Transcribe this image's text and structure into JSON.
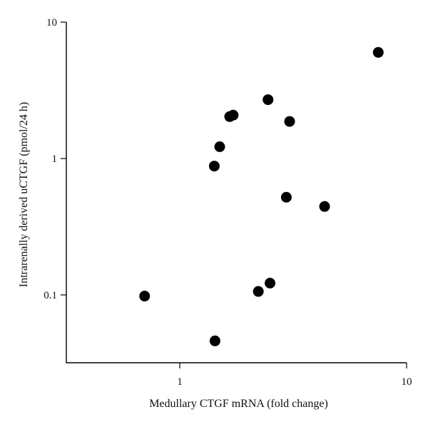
{
  "chart_data": {
    "type": "scatter",
    "title": "",
    "xlabel": "Medullary CTGF mRNA (fold change)",
    "ylabel": "Intrarenally derived uCTGF (pmol/24 h)",
    "xscale": "log",
    "yscale": "log",
    "xlim": [
      0.32,
      10
    ],
    "ylim": [
      0.032,
      10
    ],
    "grid": false,
    "legend": "none",
    "x_ticks": [
      {
        "value": 1,
        "label": "1"
      },
      {
        "value": 10,
        "label": "10"
      }
    ],
    "y_ticks": [
      {
        "value": 0.1,
        "label": "0.1"
      },
      {
        "value": 1,
        "label": "1"
      },
      {
        "value": 10,
        "label": "10"
      }
    ],
    "point_color": "#000000",
    "points": [
      {
        "x": 7.5,
        "y": 6.0
      },
      {
        "x": 2.45,
        "y": 2.7
      },
      {
        "x": 3.05,
        "y": 1.87
      },
      {
        "x": 1.72,
        "y": 2.08
      },
      {
        "x": 1.66,
        "y": 2.03
      },
      {
        "x": 1.5,
        "y": 1.22
      },
      {
        "x": 1.42,
        "y": 0.88
      },
      {
        "x": 2.95,
        "y": 0.52
      },
      {
        "x": 4.35,
        "y": 0.445
      },
      {
        "x": 2.5,
        "y": 0.122
      },
      {
        "x": 2.22,
        "y": 0.106
      },
      {
        "x": 0.7,
        "y": 0.098
      },
      {
        "x": 1.43,
        "y": 0.046
      }
    ]
  }
}
